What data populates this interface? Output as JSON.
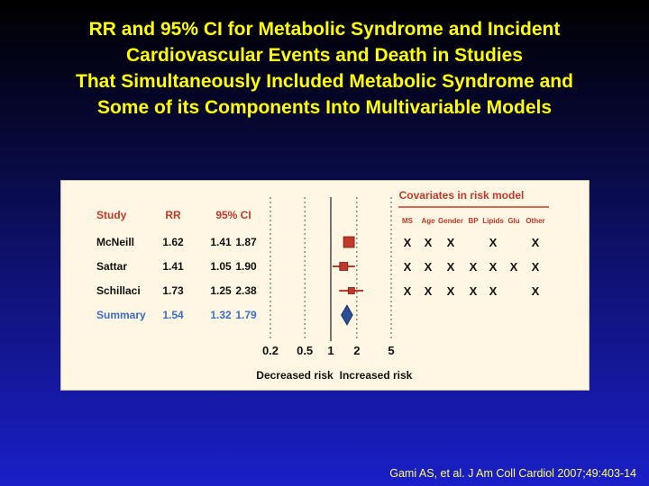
{
  "title_lines": [
    "RR and 95% CI for Metabolic Syndrome and Incident",
    "Cardiovascular Events and Death in Studies",
    "That Simultaneously Included Metabolic Syndrome and",
    "Some of its Components Into Multivariable Models"
  ],
  "citation": "Gami AS, et al. J Am Coll Cardiol 2007;49:403-14",
  "chart_data": {
    "type": "forest",
    "columns": {
      "study": "Study",
      "rr": "RR",
      "ci": "95% CI"
    },
    "rows": [
      {
        "study": "McNeill",
        "rr": 1.62,
        "lo": 1.41,
        "hi": 1.87,
        "rr_text": "1.62",
        "lo_text": "1.41",
        "hi_text": "1.87",
        "summary": false
      },
      {
        "study": "Sattar",
        "rr": 1.41,
        "lo": 1.05,
        "hi": 1.9,
        "rr_text": "1.41",
        "lo_text": "1.05",
        "hi_text": "1.90",
        "summary": false
      },
      {
        "study": "Schillaci",
        "rr": 1.73,
        "lo": 1.25,
        "hi": 2.38,
        "rr_text": "1.73",
        "lo_text": "1.25",
        "hi_text": "2.38",
        "summary": false
      },
      {
        "study": "Summary",
        "rr": 1.54,
        "lo": 1.32,
        "hi": 1.79,
        "rr_text": "1.54",
        "lo_text": "1.32",
        "hi_text": "1.79",
        "summary": true
      }
    ],
    "x_scale": "log",
    "x_ticks": [
      0.2,
      0.5,
      1,
      2,
      5
    ],
    "x_tick_labels": [
      "0.2",
      "0.5",
      "1",
      "2",
      "5"
    ],
    "xlim": [
      0.2,
      5
    ],
    "reference_line": 1,
    "left_label": "Decreased risk",
    "right_label": "Increased risk",
    "covariates": {
      "title": "Covariates in risk model",
      "headers": [
        "MS",
        "Age",
        "Gender",
        "BP",
        "Lipids",
        "Glu",
        "Other"
      ],
      "mark": "X",
      "rows": [
        [
          true,
          true,
          true,
          false,
          true,
          false,
          true
        ],
        [
          true,
          true,
          true,
          true,
          true,
          true,
          true
        ],
        [
          true,
          true,
          true,
          true,
          true,
          false,
          true
        ],
        [
          false,
          false,
          false,
          false,
          false,
          false,
          false
        ]
      ]
    },
    "colors": {
      "header": "#c0392b",
      "study": "#111111",
      "summary": "#3a6ec9",
      "square": "#c0392b",
      "diamond": "#2a4f97",
      "covariate_title": "#c0392b"
    }
  }
}
